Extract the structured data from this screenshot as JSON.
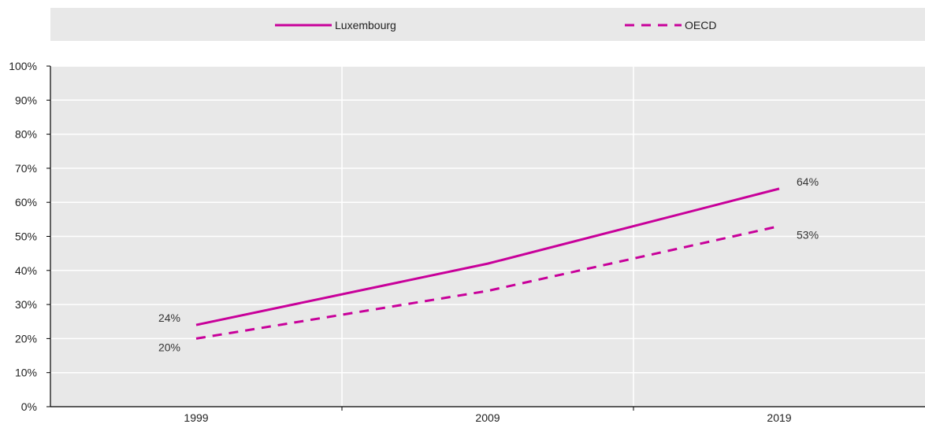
{
  "chart_data": {
    "type": "line",
    "x": [
      "1999",
      "2009",
      "2019"
    ],
    "series": [
      {
        "name": "Luxembourg",
        "values": [
          24,
          42,
          64
        ],
        "style": "solid",
        "color": "#C8009A"
      },
      {
        "name": "OECD",
        "values": [
          20,
          34,
          53
        ],
        "style": "dashed",
        "color": "#C8009A"
      }
    ],
    "data_labels": [
      {
        "series": 0,
        "index": 0,
        "text": "24%"
      },
      {
        "series": 1,
        "index": 0,
        "text": "20%"
      },
      {
        "series": 0,
        "index": 2,
        "text": "64%"
      },
      {
        "series": 1,
        "index": 2,
        "text": "53%"
      }
    ],
    "y_ticks": [
      "0%",
      "10%",
      "20%",
      "30%",
      "40%",
      "50%",
      "60%",
      "70%",
      "80%",
      "90%",
      "100%"
    ],
    "ylim": [
      0,
      100
    ],
    "title": "",
    "xlabel": "",
    "ylabel": "",
    "grid": true,
    "legend_position": "top",
    "colors": {
      "plot_background": "#E8E8E8",
      "legend_background": "#E8E8E8",
      "gridline": "#FFFFFF",
      "axis": "#000000"
    }
  }
}
